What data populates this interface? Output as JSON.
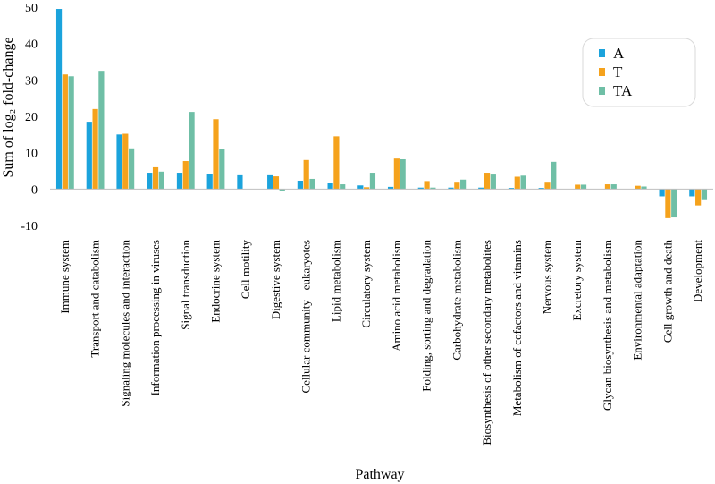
{
  "chart_data": {
    "type": "bar",
    "title": "",
    "xlabel": "Pathway",
    "ylabel": "Sum of log₂ fold-change",
    "ylim": [
      -10,
      50
    ],
    "yticks": [
      -10,
      0,
      10,
      20,
      30,
      40,
      50
    ],
    "grid": false,
    "legend_position": "top-right",
    "categories": [
      "Immune system",
      "Transport and catabolism",
      "Signaling molecules and interaction",
      "Information processing in viruses",
      "Signal transduction",
      "Endocrine system",
      "Cell motility",
      "Digestive system",
      "Cellular community - eukaryotes",
      "Lipid metabolism",
      "Circulatory system",
      "Amino acid metabolism",
      "Folding, sorting and degradation",
      "Carbohydrate metabolism",
      "Biosynthesis of other secondary metabolites",
      "Metabolism of cofactors and vitamins",
      "Nervous system",
      "Excretory system",
      "Glycan biosynthesis and metabolism",
      "Environmental adaptation",
      "Cell growth and death",
      "Development"
    ],
    "series": [
      {
        "name": "A",
        "color": "#1ba3dc",
        "values": [
          49.5,
          18.5,
          15.0,
          4.5,
          4.5,
          4.2,
          3.8,
          3.8,
          2.3,
          1.8,
          1.0,
          0.6,
          0.4,
          0.4,
          0.4,
          0.3,
          0.3,
          0.0,
          0.0,
          0.0,
          -2.0,
          -2.0
        ]
      },
      {
        "name": "T",
        "color": "#f5a21c",
        "values": [
          31.5,
          22.0,
          15.2,
          6.0,
          7.7,
          19.2,
          0.0,
          3.5,
          8.0,
          14.5,
          0.5,
          8.4,
          2.2,
          2.0,
          4.5,
          3.4,
          2.0,
          1.2,
          1.3,
          0.9,
          -8.0,
          -4.5
        ]
      },
      {
        "name": "TA",
        "color": "#6fbfa6",
        "values": [
          31.0,
          32.5,
          11.2,
          4.8,
          21.2,
          11.0,
          0.0,
          -0.4,
          2.8,
          1.3,
          4.5,
          8.2,
          0.4,
          2.6,
          4.0,
          3.7,
          7.5,
          1.2,
          1.3,
          0.7,
          -7.8,
          -2.8
        ]
      }
    ]
  }
}
